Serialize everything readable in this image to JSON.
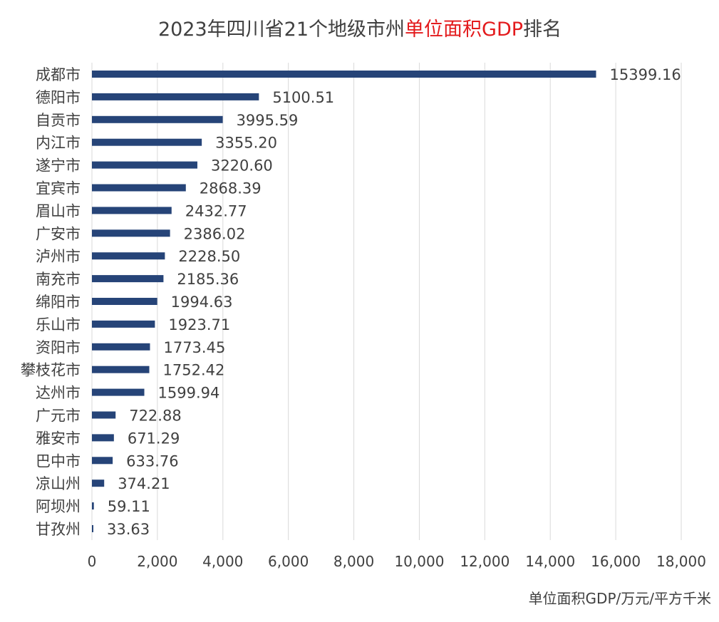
{
  "chart_data": {
    "type": "bar",
    "orientation": "horizontal",
    "title": {
      "part1": "2023年四川省21个地级市州",
      "part2": "单位面积GDP",
      "part3": "排名"
    },
    "xlabel": "单位面积GDP/万元/平方千米",
    "ylabel": "",
    "xlim": [
      0,
      18000
    ],
    "xticks": [
      {
        "value": 0,
        "label": "0"
      },
      {
        "value": 2000,
        "label": "2,000"
      },
      {
        "value": 4000,
        "label": "4,000"
      },
      {
        "value": 6000,
        "label": "6,000"
      },
      {
        "value": 8000,
        "label": "8,000"
      },
      {
        "value": 10000,
        "label": "10,000"
      },
      {
        "value": 12000,
        "label": "12,000"
      },
      {
        "value": 14000,
        "label": "14,000"
      },
      {
        "value": 16000,
        "label": "16,000"
      },
      {
        "value": 18000,
        "label": "18,000"
      }
    ],
    "grid": true,
    "legend": "none",
    "bar_color": "#264478",
    "title_highlight_color": "#e31a1c",
    "categories": [
      "成都市",
      "德阳市",
      "自贡市",
      "内江市",
      "遂宁市",
      "宜宾市",
      "眉山市",
      "广安市",
      "泸州市",
      "南充市",
      "绵阳市",
      "乐山市",
      "资阳市",
      "攀枝花市",
      "达州市",
      "广元市",
      "雅安市",
      "巴中市",
      "凉山州",
      "阿坝州",
      "甘孜州"
    ],
    "values": [
      15399.16,
      5100.51,
      3995.59,
      3355.2,
      3220.6,
      2868.39,
      2432.77,
      2386.02,
      2228.5,
      2185.36,
      1994.63,
      1923.71,
      1773.45,
      1752.42,
      1599.94,
      722.88,
      671.29,
      633.76,
      374.21,
      59.11,
      33.63
    ],
    "value_labels": [
      "15399.16",
      "5100.51",
      "3995.59",
      "3355.20",
      "3220.60",
      "2868.39",
      "2432.77",
      "2386.02",
      "2228.50",
      "2185.36",
      "1994.63",
      "1923.71",
      "1773.45",
      "1752.42",
      "1599.94",
      "722.88",
      "671.29",
      "633.76",
      "374.21",
      "59.11",
      "33.63"
    ]
  }
}
